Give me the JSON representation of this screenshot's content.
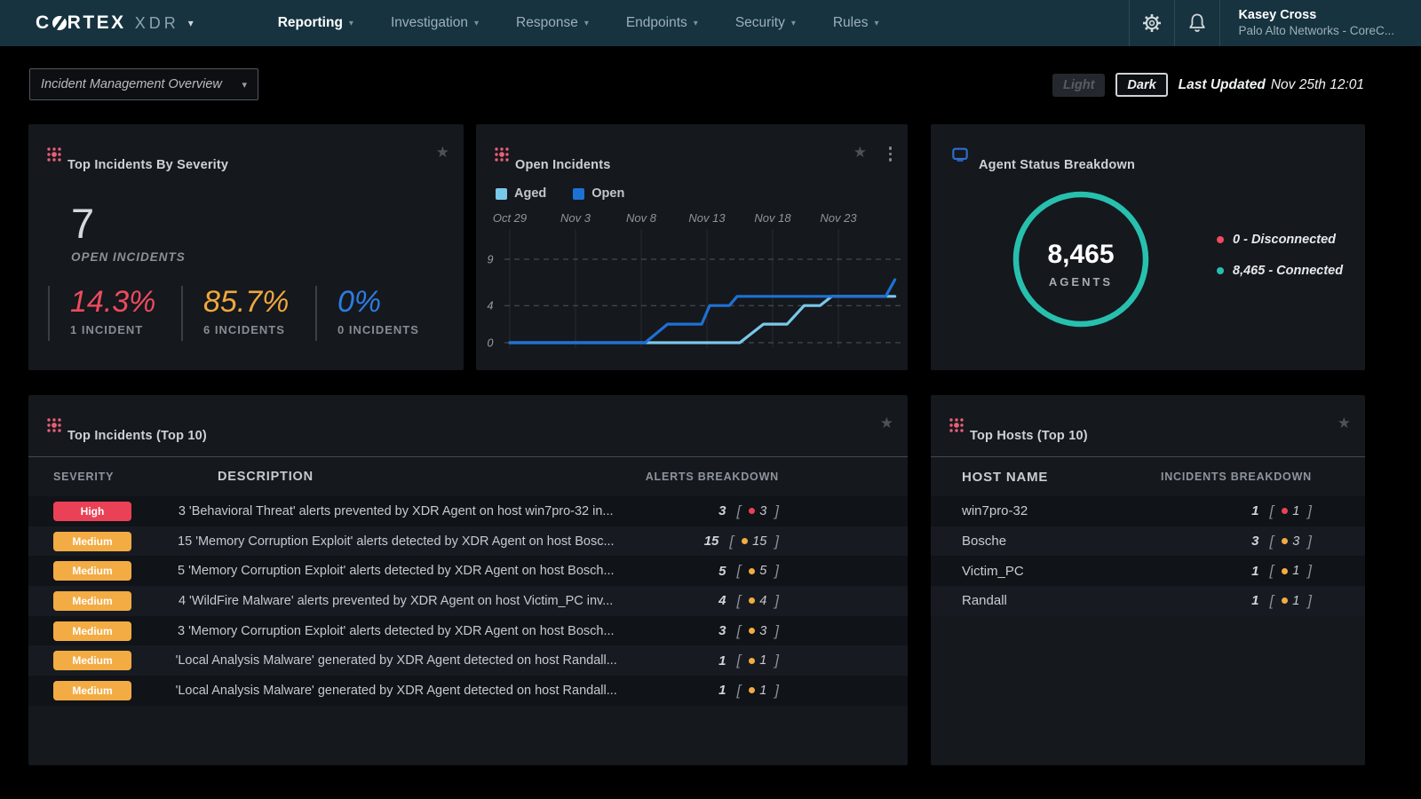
{
  "icons": {
    "star": "★",
    "caret": "▾"
  },
  "nav": {
    "brand": {
      "word_start": "C",
      "word_end": "RTEX",
      "product": "XDR"
    },
    "items": [
      {
        "label": "Reporting",
        "active": true
      },
      {
        "label": "Investigation",
        "active": false
      },
      {
        "label": "Response",
        "active": false
      },
      {
        "label": "Endpoints",
        "active": false
      },
      {
        "label": "Security",
        "active": false
      },
      {
        "label": "Rules",
        "active": false
      }
    ],
    "user": {
      "name": "Kasey Cross",
      "org": "Palo Alto Networks - CoreC..."
    }
  },
  "subheader": {
    "dashboard_selector": "Incident Management Overview",
    "theme": {
      "light": "Light",
      "dark": "Dark",
      "active": "Dark"
    },
    "last_updated_label": "Last Updated",
    "last_updated_value": "Nov 25th 12:01"
  },
  "severity_card": {
    "title": "Top Incidents By Severity",
    "open_count": "7",
    "open_label": "OPEN INCIDENTS",
    "stats": [
      {
        "pct": "14.3%",
        "label": "1 INCIDENT",
        "color": "#ee4b5e"
      },
      {
        "pct": "85.7%",
        "label": "6 INCIDENTS",
        "color": "#efa73d"
      },
      {
        "pct": "0%",
        "label": "0 INCIDENTS",
        "color": "#2c7ce2"
      }
    ]
  },
  "open_incidents_card": {
    "title": "Open Incidents",
    "legend": [
      {
        "label": "Aged",
        "color": "#79c8ea"
      },
      {
        "label": "Open",
        "color": "#1e71d4"
      }
    ]
  },
  "chart_data": {
    "type": "line",
    "title": "Open Incidents",
    "x_tick_labels": [
      "Oct 29",
      "Nov 3",
      "Nov 8",
      "Nov 13",
      "Nov 18",
      "Nov 23"
    ],
    "x_tick_days": [
      0,
      5,
      10,
      15,
      20,
      25
    ],
    "x_range_days": [
      0,
      29.5
    ],
    "y_ticks": [
      0,
      4,
      9
    ],
    "ylim": [
      0,
      10
    ],
    "grid": "dashed-horizontal, solid-vertical",
    "legend_position": "top-left",
    "series": [
      {
        "name": "Aged",
        "color": "#79c8ea",
        "points": [
          [
            0,
            0
          ],
          [
            17.5,
            0
          ],
          [
            19.3,
            2
          ],
          [
            21.1,
            2
          ],
          [
            22.4,
            4
          ],
          [
            23.6,
            4
          ],
          [
            24.5,
            5
          ],
          [
            29.3,
            5
          ]
        ]
      },
      {
        "name": "Open",
        "color": "#1e71d4",
        "points": [
          [
            0,
            0
          ],
          [
            10.3,
            0
          ],
          [
            12,
            2
          ],
          [
            14.6,
            2
          ],
          [
            15.2,
            4
          ],
          [
            16.7,
            4
          ],
          [
            17.3,
            5
          ],
          [
            28.6,
            5
          ],
          [
            29.3,
            6.8
          ]
        ]
      }
    ]
  },
  "agent_card": {
    "title": "Agent Status Breakdown",
    "total": "8,465",
    "total_label": "AGENTS",
    "ring_color": "#27c0af",
    "legend": [
      {
        "label": "0 - Disconnected",
        "color": "#ee4b5e"
      },
      {
        "label": "8,465 - Connected",
        "color": "#27c0af"
      }
    ]
  },
  "top_incidents_card": {
    "title": "Top Incidents (Top 10)",
    "columns": [
      "SEVERITY",
      "DESCRIPTION",
      "ALERTS BREAKDOWN"
    ],
    "rows": [
      {
        "severity": "High",
        "severity_color": "#ea4156",
        "description": "3 'Behavioral Threat' alerts prevented by XDR Agent on host win7pro-32 in...",
        "count": "3",
        "dot_color": "#ea4156",
        "dot_count": "3"
      },
      {
        "severity": "Medium",
        "severity_color": "#f3ab43",
        "description": "15 'Memory Corruption Exploit' alerts detected by XDR Agent on host Bosc...",
        "count": "15",
        "dot_color": "#f3ab43",
        "dot_count": "15"
      },
      {
        "severity": "Medium",
        "severity_color": "#f3ab43",
        "description": "5 'Memory Corruption Exploit' alerts detected by XDR Agent on host Bosch...",
        "count": "5",
        "dot_color": "#f3ab43",
        "dot_count": "5"
      },
      {
        "severity": "Medium",
        "severity_color": "#f3ab43",
        "description": "4 'WildFire Malware' alerts prevented by XDR Agent on host Victim_PC inv...",
        "count": "4",
        "dot_color": "#f3ab43",
        "dot_count": "4"
      },
      {
        "severity": "Medium",
        "severity_color": "#f3ab43",
        "description": "3 'Memory Corruption Exploit' alerts detected by XDR Agent on host Bosch...",
        "count": "3",
        "dot_color": "#f3ab43",
        "dot_count": "3"
      },
      {
        "severity": "Medium",
        "severity_color": "#f3ab43",
        "description": "'Local Analysis Malware' generated by XDR Agent detected on host Randall...",
        "count": "1",
        "dot_color": "#f3ab43",
        "dot_count": "1"
      },
      {
        "severity": "Medium",
        "severity_color": "#f3ab43",
        "description": "'Local Analysis Malware' generated by XDR Agent detected on host Randall...",
        "count": "1",
        "dot_color": "#f3ab43",
        "dot_count": "1"
      }
    ]
  },
  "top_hosts_card": {
    "title": "Top Hosts (Top 10)",
    "columns": [
      "HOST NAME",
      "INCIDENTS BREAKDOWN"
    ],
    "rows": [
      {
        "host": "win7pro-32",
        "count": "1",
        "dot_color": "#ea4156",
        "dot_count": "1"
      },
      {
        "host": "Bosche",
        "count": "3",
        "dot_color": "#f3ab43",
        "dot_count": "3"
      },
      {
        "host": "Victim_PC",
        "count": "1",
        "dot_color": "#f3ab43",
        "dot_count": "1"
      },
      {
        "host": "Randall",
        "count": "1",
        "dot_color": "#f3ab43",
        "dot_count": "1"
      }
    ]
  }
}
